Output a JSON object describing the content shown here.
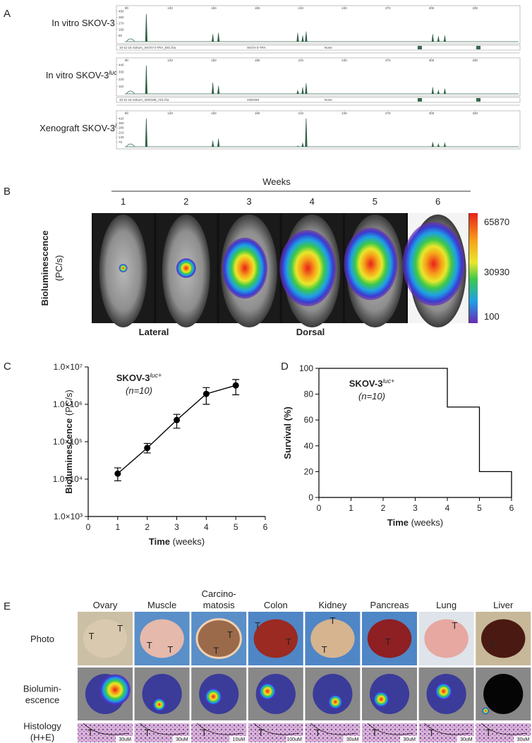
{
  "panel_a": {
    "label": "A",
    "xlim": [
      83,
      361
    ],
    "xticks": [
      90,
      120,
      150,
      180,
      210,
      240,
      270,
      300,
      330
    ],
    "rows": [
      {
        "name": "In vitro SKOV-3",
        "ylim": [
          0,
          450
        ],
        "yticks": [
          90,
          180,
          270,
          360,
          450
        ],
        "peaks": [
          {
            "x": 103.6,
            "height": 420
          },
          {
            "x": 149.4,
            "height": 120
          },
          {
            "x": 153.3,
            "height": 140
          },
          {
            "x": 207.9,
            "height": 140
          },
          {
            "x": 211.3,
            "height": 100
          },
          {
            "x": 213.7,
            "height": 160
          },
          {
            "x": 300.9,
            "height": 120
          },
          {
            "x": 304.8,
            "height": 90
          },
          {
            "x": 309.2,
            "height": 100
          }
        ]
      },
      {
        "name": "In vitro SKOV-3",
        "superscript": "luc+",
        "ylim": [
          0,
          460
        ],
        "yticks": [
          110,
          220,
          330,
          440
        ],
        "peaks": [
          {
            "x": 103.6,
            "height": 440
          },
          {
            "x": 149.4,
            "height": 180
          },
          {
            "x": 153.3,
            "height": 130
          },
          {
            "x": 207.9,
            "height": 70
          },
          {
            "x": 211.3,
            "height": 110
          },
          {
            "x": 213.7,
            "height": 170
          },
          {
            "x": 300.9,
            "height": 110
          },
          {
            "x": 304.8,
            "height": 70
          },
          {
            "x": 309.2,
            "height": 90
          }
        ]
      },
      {
        "name": "Xenograft SKOV-3",
        "superscript": "luc+",
        "ylim": [
          0,
          450
        ],
        "yticks": [
          70,
          140,
          210,
          280,
          350,
          420
        ],
        "peaks": [
          {
            "x": 103.6,
            "height": 430
          },
          {
            "x": 149.4,
            "height": 100
          },
          {
            "x": 153.3,
            "height": 130
          },
          {
            "x": 207.9,
            "height": 30
          },
          {
            "x": 211.3,
            "height": 70
          },
          {
            "x": 213.7,
            "height": 430
          },
          {
            "x": 300.9,
            "height": 80
          },
          {
            "x": 304.8,
            "height": 60
          },
          {
            "x": 309.2,
            "height": 70
          }
        ]
      }
    ],
    "strips": [
      [
        "10-11-16 Sokum_SKOV-3-TRA_E01.fsa",
        "SKOV-3-TRA",
        "None"
      ],
      [
        "10-11-16 Sokum_3491NM_A01.fsa",
        "3491NM",
        "None"
      ]
    ]
  },
  "panel_b": {
    "label": "B",
    "axis_title": "Weeks",
    "weeks": [
      1,
      2,
      3,
      4,
      5,
      6
    ],
    "y_label": [
      "Bioluminescence",
      "(PC/s)"
    ],
    "colorbar": {
      "max": 65870,
      "mid": 30930,
      "min": 100
    },
    "views": [
      "Lateral",
      "Dorsal"
    ]
  },
  "panel_c": {
    "label": "C",
    "type": "line",
    "title": "SKOV-3",
    "title_superscript": "luc+",
    "subtitle": "(n=10)",
    "x_label": {
      "bold": "Time",
      "rest": "(weeks)"
    },
    "y_label": {
      "bold": "Bioluminescence",
      "rest": "(PC/s)"
    },
    "x": [
      1,
      2,
      3,
      4,
      5
    ],
    "values": [
      14000,
      68000,
      380000,
      1900000,
      3200000
    ],
    "lower": [
      9000,
      50000,
      230000,
      1000000,
      1800000
    ],
    "upper": [
      20000,
      90000,
      540000,
      2800000,
      4600000
    ],
    "xlim": [
      0,
      6
    ],
    "xticks": [
      0,
      1,
      2,
      3,
      4,
      5,
      6
    ],
    "ylim": [
      1000,
      10000000
    ],
    "log_scale": true,
    "yticks": [
      {
        "value": 1000,
        "label": "1.0×10³"
      },
      {
        "value": 10000,
        "label": "1.0×10⁴"
      },
      {
        "value": 100000,
        "label": "1.0×10⁵"
      },
      {
        "value": 1000000,
        "label": "1.0×10⁶"
      },
      {
        "value": 10000000,
        "label": "1.0×10⁷"
      }
    ]
  },
  "panel_d": {
    "label": "D",
    "type": "step",
    "title": "SKOV-3",
    "title_superscript": "luc+",
    "subtitle": "(n=10)",
    "x_label": {
      "bold": "Time",
      "rest": "(weeks)"
    },
    "y_label": "Survival (%)",
    "x": [
      0,
      4,
      5,
      6
    ],
    "values": [
      100,
      70,
      20,
      0
    ],
    "xlim": [
      0,
      6
    ],
    "xticks": [
      0,
      1,
      2,
      3,
      4,
      5,
      6
    ],
    "ylim": [
      0,
      100
    ],
    "yticks": [
      0,
      20,
      40,
      60,
      80,
      100
    ]
  },
  "panel_e": {
    "label": "E",
    "rows": [
      [
        "Photo"
      ],
      [
        "Biolumin-",
        "escence"
      ],
      [
        "Histology",
        "(H+E)"
      ]
    ],
    "columns": [
      {
        "name": [
          "Ovary"
        ],
        "photo_labels": [
          "T",
          "T"
        ],
        "histology_label": "T",
        "scale_bar": "30uM"
      },
      {
        "name": [
          "Muscle"
        ],
        "photo_labels": [
          "T",
          "T"
        ],
        "histology_label": "T",
        "scale_bar": "30uM"
      },
      {
        "name": [
          "Carcino-",
          "matosis"
        ],
        "photo_labels": [
          "T",
          "T"
        ],
        "histology_label": "T",
        "scale_bar": "10uM"
      },
      {
        "name": [
          "Colon"
        ],
        "photo_labels": [
          "T",
          "T"
        ],
        "histology_label": "T",
        "scale_bar": "100uM"
      },
      {
        "name": [
          "Kidney"
        ],
        "photo_labels": [
          "T",
          "T"
        ],
        "histology_label": "T",
        "scale_bar": "30uM"
      },
      {
        "name": [
          "Pancreas"
        ],
        "photo_labels": [
          "T"
        ],
        "histology_label": "T",
        "scale_bar": "30uM"
      },
      {
        "name": [
          "Lung"
        ],
        "photo_labels": [
          "T"
        ],
        "histology_label": "T",
        "scale_bar": "30uM"
      },
      {
        "name": [
          "Liver"
        ],
        "photo_labels": [
          "T"
        ],
        "histology_label": "T",
        "scale_bar": "30uM"
      }
    ]
  }
}
